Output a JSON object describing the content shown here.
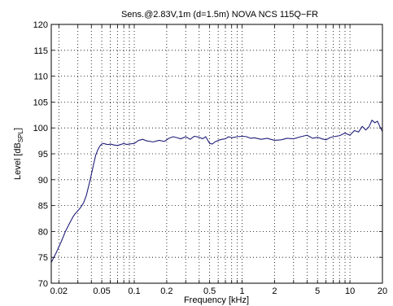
{
  "chart_data": {
    "type": "line",
    "title": "Sens.@2.83V,1m (d=1.5m)    NOVA NCS 115Q−FR",
    "xlabel": "Frequency [kHz]",
    "ylabel": {
      "prefix": "Level [dB",
      "subscript": "SPL",
      "suffix": "]"
    },
    "x_scale": "log",
    "x_unit": "kHz",
    "xlim": [
      0.017,
      20
    ],
    "ylim": [
      70,
      120
    ],
    "grid": true,
    "x_ticks": [
      {
        "value": 0.02,
        "label": "0.02"
      },
      {
        "value": 0.05,
        "label": "0.05"
      },
      {
        "value": 0.1,
        "label": "0.1"
      },
      {
        "value": 0.2,
        "label": "0.2"
      },
      {
        "value": 0.5,
        "label": "0.5"
      },
      {
        "value": 1,
        "label": "1"
      },
      {
        "value": 2,
        "label": "2"
      },
      {
        "value": 5,
        "label": "5"
      },
      {
        "value": 10,
        "label": "10"
      },
      {
        "value": 20,
        "label": "20"
      }
    ],
    "y_ticks": [
      70,
      75,
      80,
      85,
      90,
      95,
      100,
      105,
      110,
      115,
      120
    ],
    "series": [
      {
        "color": "#1f1f7a",
        "x": [
          0.017,
          0.019,
          0.021,
          0.023,
          0.025,
          0.027,
          0.028,
          0.03,
          0.032,
          0.034,
          0.036,
          0.038,
          0.04,
          0.042,
          0.044,
          0.046,
          0.048,
          0.05,
          0.052,
          0.054,
          0.056,
          0.058,
          0.06,
          0.065,
          0.07,
          0.075,
          0.08,
          0.085,
          0.09,
          0.1,
          0.11,
          0.12,
          0.13,
          0.15,
          0.17,
          0.19,
          0.21,
          0.23,
          0.25,
          0.27,
          0.3,
          0.33,
          0.36,
          0.4,
          0.43,
          0.46,
          0.5,
          0.53,
          0.56,
          0.6,
          0.65,
          0.7,
          0.75,
          0.8,
          0.9,
          1.0,
          1.1,
          1.2,
          1.3,
          1.5,
          1.7,
          2.0,
          2.3,
          2.6,
          3.0,
          3.5,
          4.0,
          4.5,
          5.0,
          5.5,
          6.0,
          6.5,
          7.0,
          8.0,
          9.0,
          10.0,
          11.0,
          12.0,
          13.0,
          14.0,
          15.0,
          16.0,
          17.0,
          18.0,
          19.0,
          20.0
        ],
        "y": [
          74.0,
          76.0,
          78.0,
          80.0,
          81.5,
          82.8,
          83.3,
          84.0,
          84.7,
          85.6,
          87.0,
          89.0,
          91.0,
          93.0,
          94.8,
          95.8,
          96.5,
          96.9,
          97.0,
          96.9,
          96.8,
          96.8,
          96.9,
          96.7,
          96.6,
          96.8,
          97.0,
          96.8,
          96.9,
          97.0,
          97.6,
          97.8,
          97.5,
          97.3,
          97.6,
          97.4,
          98.0,
          98.3,
          98.1,
          97.9,
          98.3,
          97.8,
          98.4,
          98.2,
          97.9,
          98.3,
          97.0,
          96.9,
          97.3,
          97.6,
          97.8,
          97.9,
          98.3,
          98.1,
          98.3,
          98.4,
          98.3,
          98.0,
          98.1,
          97.8,
          98.0,
          97.6,
          97.7,
          98.0,
          97.9,
          98.3,
          98.6,
          98.0,
          98.2,
          97.9,
          97.7,
          98.1,
          98.3,
          98.5,
          99.0,
          98.6,
          99.5,
          99.2,
          100.3,
          99.6,
          100.2,
          101.5,
          101.0,
          101.3,
          100.2,
          99.3
        ]
      }
    ]
  }
}
